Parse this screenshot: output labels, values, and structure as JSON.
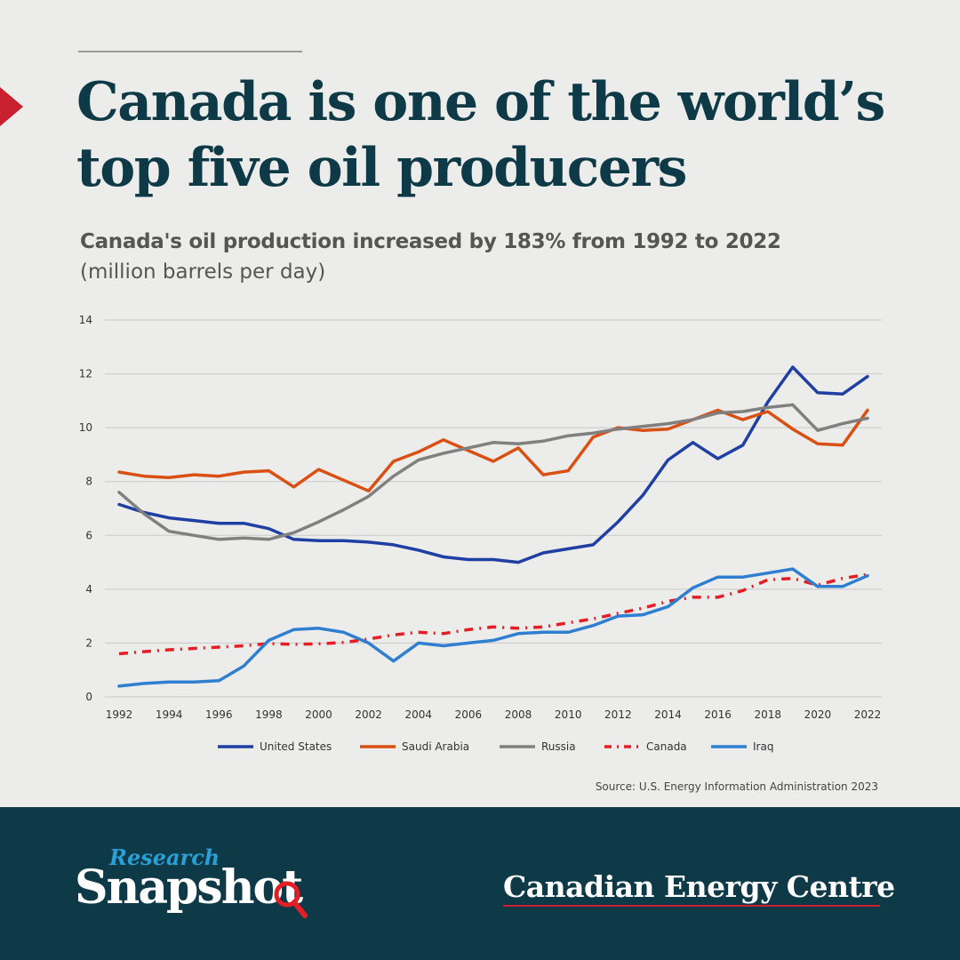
{
  "header": {
    "title": "Canada is one of the world’s top five oil producers",
    "subtitle": "Canada's oil production increased by 183% from 1992 to 2022",
    "unit": "(million barrels per day)"
  },
  "source": "Source: U.S. Energy Information Administration 2023",
  "footer": {
    "brand_small": "Research",
    "brand_big": "Snapshot",
    "org": "Canadian Energy Centre"
  },
  "colors": {
    "navy": "#0e3a48",
    "accent_red": "#c8202f",
    "united_states": "#1f3fa3",
    "saudi_arabia": "#d95012",
    "russia": "#808080",
    "canada": "#e31e24",
    "iraq": "#2f7fd0"
  },
  "chart_data": {
    "type": "line",
    "ylim": [
      0,
      14
    ],
    "yticks": [
      "0",
      "2",
      "4",
      "6",
      "8",
      "10",
      "12",
      "14"
    ],
    "xticks": [
      "1992",
      "1994",
      "1996",
      "1998",
      "2000",
      "2002",
      "2004",
      "2006",
      "2008",
      "2010",
      "2012",
      "2014",
      "2016",
      "2018",
      "2020",
      "2022"
    ],
    "x": [
      1992,
      1993,
      1994,
      1995,
      1996,
      1997,
      1998,
      1999,
      2000,
      2001,
      2002,
      2003,
      2004,
      2005,
      2006,
      2007,
      2008,
      2009,
      2010,
      2011,
      2012,
      2013,
      2014,
      2015,
      2016,
      2017,
      2018,
      2019,
      2020,
      2021,
      2022
    ],
    "grid": true,
    "legend_position": "bottom",
    "series": [
      {
        "name": "United States",
        "color": "#1f3fa3",
        "style": "solid",
        "values": [
          7.15,
          6.85,
          6.65,
          6.55,
          6.45,
          6.45,
          6.25,
          5.85,
          5.8,
          5.8,
          5.75,
          5.65,
          5.45,
          5.2,
          5.1,
          5.1,
          5.0,
          5.35,
          5.5,
          5.65,
          6.5,
          7.5,
          8.8,
          9.45,
          8.85,
          9.35,
          10.95,
          12.25,
          11.3,
          11.25,
          11.9
        ]
      },
      {
        "name": "Saudi Arabia",
        "color": "#d95012",
        "style": "solid",
        "values": [
          8.35,
          8.2,
          8.15,
          8.25,
          8.2,
          8.35,
          8.4,
          7.8,
          8.45,
          8.05,
          7.65,
          8.75,
          9.1,
          9.55,
          9.15,
          8.75,
          9.25,
          8.25,
          8.4,
          9.65,
          10.0,
          9.9,
          9.95,
          10.3,
          10.65,
          10.3,
          10.6,
          9.95,
          9.4,
          9.35,
          10.65
        ]
      },
      {
        "name": "Russia",
        "color": "#808080",
        "style": "solid",
        "values": [
          7.6,
          6.8,
          6.15,
          6.0,
          5.85,
          5.9,
          5.85,
          6.1,
          6.5,
          6.95,
          7.45,
          8.2,
          8.8,
          9.05,
          9.25,
          9.45,
          9.4,
          9.5,
          9.7,
          9.8,
          9.95,
          10.05,
          10.15,
          10.3,
          10.55,
          10.6,
          10.75,
          10.85,
          9.9,
          10.15,
          10.35
        ]
      },
      {
        "name": "Canada",
        "color": "#e31e24",
        "style": "dashdot",
        "values": [
          1.6,
          1.68,
          1.75,
          1.8,
          1.85,
          1.9,
          1.98,
          1.95,
          1.97,
          2.02,
          2.15,
          2.3,
          2.4,
          2.35,
          2.5,
          2.6,
          2.55,
          2.6,
          2.75,
          2.9,
          3.1,
          3.3,
          3.55,
          3.7,
          3.7,
          3.95,
          4.35,
          4.4,
          4.15,
          4.4,
          4.55
        ]
      },
      {
        "name": "Iraq",
        "color": "#2f7fd0",
        "style": "solid",
        "values": [
          0.4,
          0.5,
          0.55,
          0.55,
          0.6,
          1.15,
          2.1,
          2.5,
          2.55,
          2.4,
          2.0,
          1.33,
          2.0,
          1.9,
          2.0,
          2.1,
          2.35,
          2.4,
          2.4,
          2.65,
          3.0,
          3.05,
          3.35,
          4.05,
          4.45,
          4.45,
          4.6,
          4.75,
          4.1,
          4.1,
          4.5
        ]
      }
    ]
  }
}
